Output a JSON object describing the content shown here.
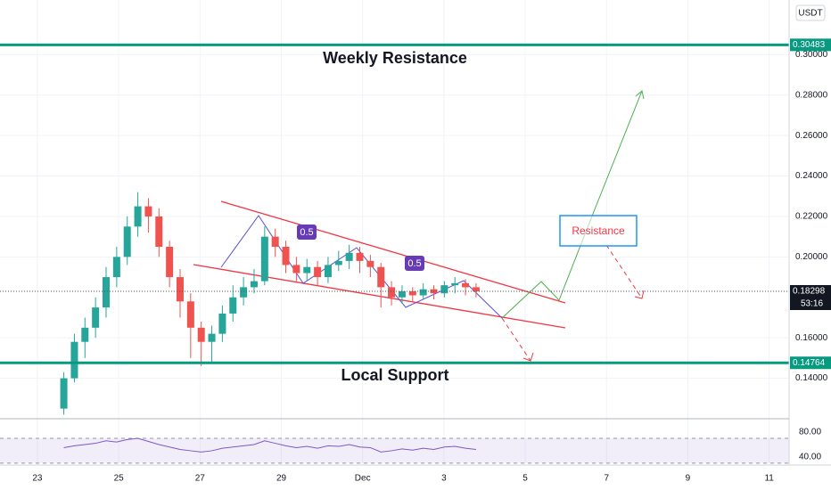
{
  "chart_data": [
    {
      "type": "candlestick",
      "currency": "USDT",
      "x": [
        0.65,
        0.91,
        1.17,
        1.43,
        1.69,
        1.95,
        2.21,
        2.47,
        2.73,
        2.99,
        3.25,
        3.51,
        3.77,
        4.03,
        4.29,
        4.55,
        4.81,
        5.07,
        5.33,
        5.59,
        5.85,
        6.11,
        6.37,
        6.63,
        6.89,
        7.15,
        7.41,
        7.67,
        7.93,
        8.19,
        8.45,
        8.71,
        8.97,
        9.23,
        9.49,
        9.75,
        10.01,
        10.27,
        10.53,
        10.79
      ],
      "open": [
        0.125,
        0.14,
        0.158,
        0.165,
        0.175,
        0.19,
        0.2,
        0.215,
        0.225,
        0.22,
        0.205,
        0.19,
        0.178,
        0.165,
        0.158,
        0.162,
        0.172,
        0.18,
        0.185,
        0.188,
        0.21,
        0.205,
        0.196,
        0.192,
        0.195,
        0.19,
        0.196,
        0.198,
        0.202,
        0.198,
        0.195,
        0.185,
        0.18,
        0.183,
        0.181,
        0.184,
        0.182,
        0.186,
        0.187,
        0.185
      ],
      "high": [
        0.143,
        0.162,
        0.17,
        0.18,
        0.195,
        0.205,
        0.22,
        0.232,
        0.229,
        0.224,
        0.208,
        0.194,
        0.182,
        0.168,
        0.166,
        0.176,
        0.186,
        0.19,
        0.194,
        0.215,
        0.214,
        0.208,
        0.2,
        0.199,
        0.198,
        0.2,
        0.203,
        0.206,
        0.205,
        0.201,
        0.197,
        0.188,
        0.186,
        0.185,
        0.187,
        0.186,
        0.188,
        0.19,
        0.189,
        0.187
      ],
      "low": [
        0.122,
        0.138,
        0.15,
        0.16,
        0.17,
        0.185,
        0.196,
        0.21,
        0.212,
        0.2,
        0.185,
        0.17,
        0.15,
        0.146,
        0.148,
        0.158,
        0.168,
        0.176,
        0.182,
        0.186,
        0.2,
        0.192,
        0.188,
        0.188,
        0.186,
        0.187,
        0.193,
        0.194,
        0.192,
        0.19,
        0.175,
        0.176,
        0.177,
        0.178,
        0.179,
        0.179,
        0.18,
        0.182,
        0.181,
        0.18
      ],
      "close": [
        0.14,
        0.158,
        0.165,
        0.175,
        0.19,
        0.2,
        0.215,
        0.225,
        0.22,
        0.205,
        0.19,
        0.178,
        0.165,
        0.158,
        0.162,
        0.172,
        0.18,
        0.185,
        0.188,
        0.21,
        0.205,
        0.196,
        0.192,
        0.195,
        0.19,
        0.196,
        0.198,
        0.202,
        0.198,
        0.195,
        0.185,
        0.18,
        0.183,
        0.181,
        0.184,
        0.182,
        0.186,
        0.187,
        0.185,
        0.183
      ],
      "up_color": "#26a69a",
      "down_color": "#ef5350",
      "xlim": [
        -0.92,
        18.49
      ],
      "xticks": [
        {
          "value": 0,
          "label": "23"
        },
        {
          "value": 2,
          "label": "25"
        },
        {
          "value": 4,
          "label": "27"
        },
        {
          "value": 6,
          "label": "29"
        },
        {
          "value": 8,
          "label": "Dec"
        },
        {
          "value": 10,
          "label": "3"
        },
        {
          "value": 12,
          "label": "5"
        },
        {
          "value": 14,
          "label": "7"
        },
        {
          "value": 16,
          "label": "9"
        },
        {
          "value": 18,
          "label": "11"
        }
      ],
      "ylim": [
        0.12,
        0.327
      ],
      "yticks": [
        {
          "value": 0.14,
          "label": "0.14000"
        },
        {
          "value": 0.16,
          "label": "0.16000"
        },
        {
          "value": 0.2,
          "label": "0.20000"
        },
        {
          "value": 0.22,
          "label": "0.22000"
        },
        {
          "value": 0.24,
          "label": "0.24000"
        },
        {
          "value": 0.26,
          "label": "0.26000"
        },
        {
          "value": 0.28,
          "label": "0.28000"
        },
        {
          "value": 0.3,
          "label": "0.30000"
        }
      ],
      "grid": true,
      "levels": [
        {
          "name": "Weekly Resistance",
          "value": 0.30483,
          "color": "#089981"
        },
        {
          "name": "Local Support",
          "value": 0.14764,
          "color": "#089981"
        }
      ],
      "last_price": 0.18298,
      "countdown": "53:16",
      "annotations": [
        "0.5",
        "0.5",
        "Resistance"
      ]
    },
    {
      "type": "line",
      "x": [
        0.65,
        0.91,
        1.17,
        1.43,
        1.69,
        1.95,
        2.21,
        2.47,
        2.73,
        2.99,
        3.25,
        3.51,
        3.77,
        4.03,
        4.29,
        4.55,
        4.81,
        5.07,
        5.33,
        5.59,
        5.85,
        6.11,
        6.37,
        6.63,
        6.89,
        7.15,
        7.41,
        7.67,
        7.93,
        8.19,
        8.45,
        8.71,
        8.97,
        9.23,
        9.49,
        9.75,
        10.01,
        10.27,
        10.53,
        10.79
      ],
      "values": [
        55,
        58,
        60,
        62,
        66,
        64,
        68,
        70,
        65,
        60,
        56,
        52,
        50,
        48,
        50,
        54,
        56,
        58,
        60,
        66,
        62,
        58,
        55,
        57,
        54,
        58,
        57,
        60,
        56,
        55,
        48,
        50,
        53,
        51,
        54,
        52,
        56,
        57,
        54,
        52
      ],
      "color": "#7e57c2",
      "ylim": [
        27,
        98.6
      ],
      "yticks": [
        {
          "value": 80,
          "label": "80.00"
        },
        {
          "value": 40,
          "label": "40.00"
        }
      ],
      "band": [
        30,
        70
      ]
    }
  ]
}
